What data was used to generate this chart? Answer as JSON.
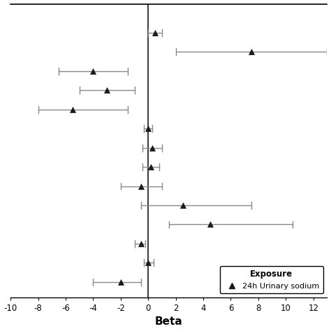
{
  "title": "",
  "xlabel": "Beta",
  "ylabel": "",
  "xlim": [
    -10,
    13
  ],
  "xticks": [
    -10,
    -8,
    -6,
    -4,
    -2,
    0,
    2,
    4,
    6,
    8,
    10,
    12
  ],
  "background_color": "#ffffff",
  "legend_label": "24h Urinary sodium",
  "legend_title": "Exposure",
  "points": [
    {
      "y": 14,
      "beta": 0.5,
      "ci_lo": 0.0,
      "ci_hi": 1.0
    },
    {
      "y": 13,
      "beta": 7.5,
      "ci_lo": 2.0,
      "ci_hi": 13.0
    },
    {
      "y": 12,
      "beta": -4.0,
      "ci_lo": -6.5,
      "ci_hi": -1.5
    },
    {
      "y": 11,
      "beta": -3.0,
      "ci_lo": -5.0,
      "ci_hi": -1.0
    },
    {
      "y": 10,
      "beta": -5.5,
      "ci_lo": -8.0,
      "ci_hi": -1.5
    },
    {
      "y": 9,
      "beta": 0.0,
      "ci_lo": -0.3,
      "ci_hi": 0.3
    },
    {
      "y": 8,
      "beta": 0.3,
      "ci_lo": -0.4,
      "ci_hi": 1.0
    },
    {
      "y": 7,
      "beta": 0.2,
      "ci_lo": -0.4,
      "ci_hi": 0.8
    },
    {
      "y": 6,
      "beta": -0.5,
      "ci_lo": -2.0,
      "ci_hi": 1.0
    },
    {
      "y": 5,
      "beta": 2.5,
      "ci_lo": -0.5,
      "ci_hi": 7.5
    },
    {
      "y": 4,
      "beta": 4.5,
      "ci_lo": 1.5,
      "ci_hi": 10.5
    },
    {
      "y": 3,
      "beta": -0.5,
      "ci_lo": -1.0,
      "ci_hi": -0.2
    },
    {
      "y": 2,
      "beta": 0.0,
      "ci_lo": -0.3,
      "ci_hi": 0.4
    },
    {
      "y": 1,
      "beta": -2.0,
      "ci_lo": -4.0,
      "ci_hi": -0.5
    }
  ],
  "marker_color": "#1a1a1a",
  "line_color": "#888888",
  "marker_size": 6,
  "line_width": 1.0,
  "cap_size": 0.18
}
